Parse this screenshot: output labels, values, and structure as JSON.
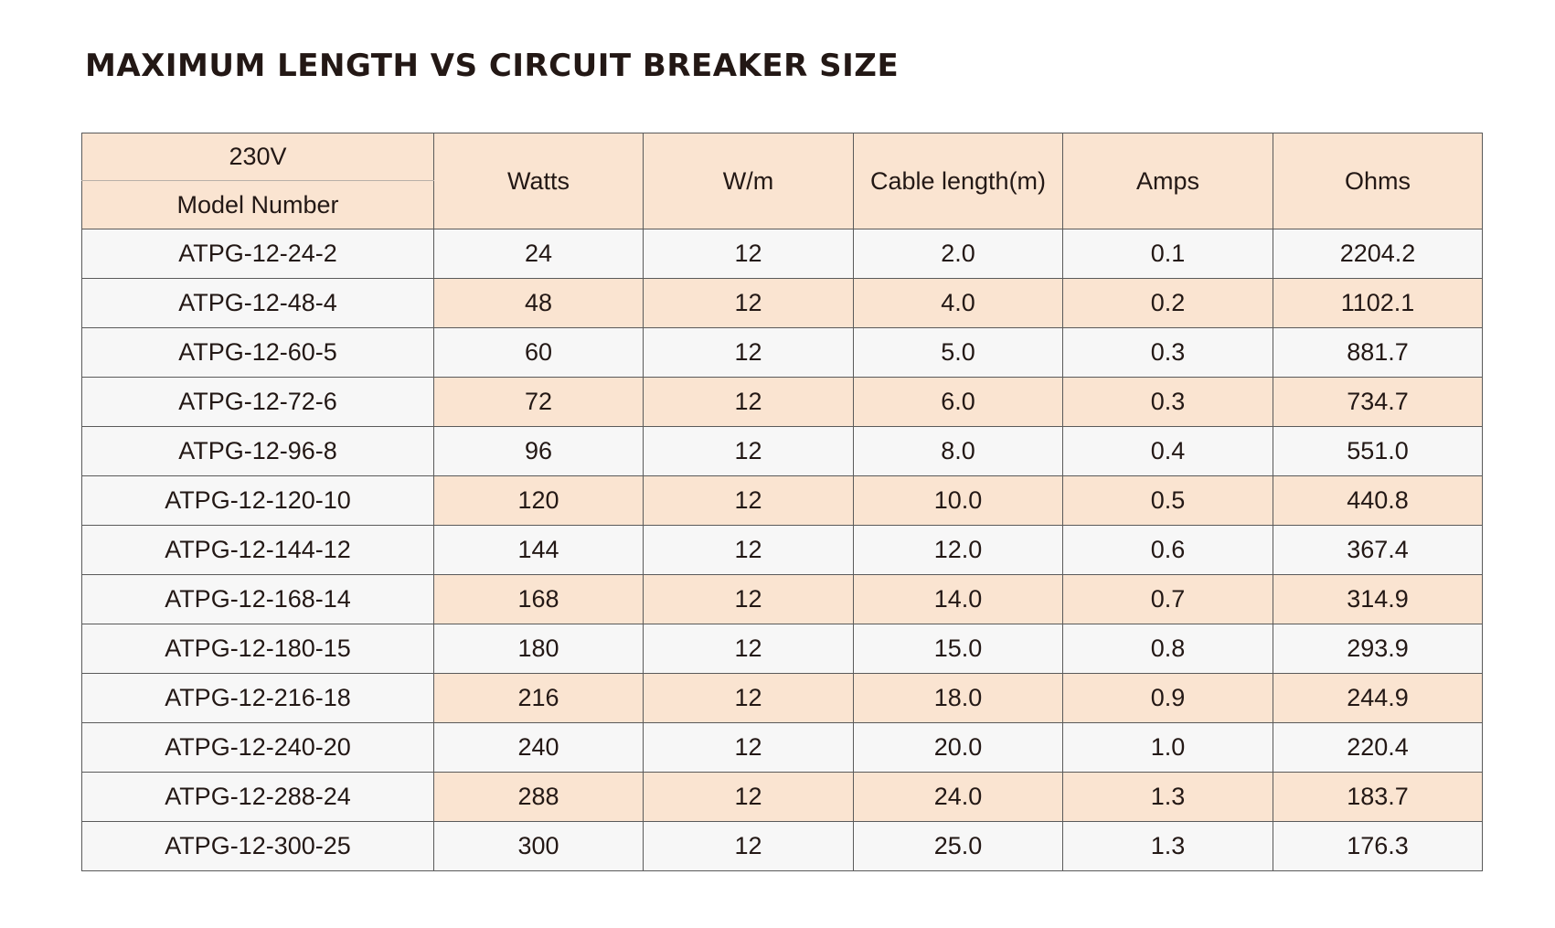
{
  "title": "MAXIMUM LENGTH VS CIRCUIT BREAKER SIZE",
  "colors": {
    "header_bg": "#fae4d1",
    "row_highlight": "#fae4d1",
    "row_plain": "#f7f7f7",
    "text": "#231815",
    "border": "#5a5a5a"
  },
  "table": {
    "voltage_label": "230V",
    "headers": {
      "model": "Model Number",
      "watts": "Watts",
      "wpm": "W/m",
      "cable_length": "Cable length(m)",
      "amps": "Amps",
      "ohms": "Ohms"
    },
    "rows": [
      {
        "model": "ATPG-12-24-2",
        "watts": "24",
        "wpm": "12",
        "cable_length": "2.0",
        "amps": "0.1",
        "ohms": "2204.2"
      },
      {
        "model": "ATPG-12-48-4",
        "watts": "48",
        "wpm": "12",
        "cable_length": "4.0",
        "amps": "0.2",
        "ohms": "1102.1"
      },
      {
        "model": "ATPG-12-60-5",
        "watts": "60",
        "wpm": "12",
        "cable_length": "5.0",
        "amps": "0.3",
        "ohms": "881.7"
      },
      {
        "model": "ATPG-12-72-6",
        "watts": "72",
        "wpm": "12",
        "cable_length": "6.0",
        "amps": "0.3",
        "ohms": "734.7"
      },
      {
        "model": "ATPG-12-96-8",
        "watts": "96",
        "wpm": "12",
        "cable_length": "8.0",
        "amps": "0.4",
        "ohms": "551.0"
      },
      {
        "model": "ATPG-12-120-10",
        "watts": "120",
        "wpm": "12",
        "cable_length": "10.0",
        "amps": "0.5",
        "ohms": "440.8"
      },
      {
        "model": "ATPG-12-144-12",
        "watts": "144",
        "wpm": "12",
        "cable_length": "12.0",
        "amps": "0.6",
        "ohms": "367.4"
      },
      {
        "model": "ATPG-12-168-14",
        "watts": "168",
        "wpm": "12",
        "cable_length": "14.0",
        "amps": "0.7",
        "ohms": "314.9"
      },
      {
        "model": "ATPG-12-180-15",
        "watts": "180",
        "wpm": "12",
        "cable_length": "15.0",
        "amps": "0.8",
        "ohms": "293.9"
      },
      {
        "model": "ATPG-12-216-18",
        "watts": "216",
        "wpm": "12",
        "cable_length": "18.0",
        "amps": "0.9",
        "ohms": "244.9"
      },
      {
        "model": "ATPG-12-240-20",
        "watts": "240",
        "wpm": "12",
        "cable_length": "20.0",
        "amps": "1.0",
        "ohms": "220.4"
      },
      {
        "model": "ATPG-12-288-24",
        "watts": "288",
        "wpm": "12",
        "cable_length": "24.0",
        "amps": "1.3",
        "ohms": "183.7"
      },
      {
        "model": "ATPG-12-300-25",
        "watts": "300",
        "wpm": "12",
        "cable_length": "25.0",
        "amps": "1.3",
        "ohms": "176.3"
      }
    ]
  }
}
